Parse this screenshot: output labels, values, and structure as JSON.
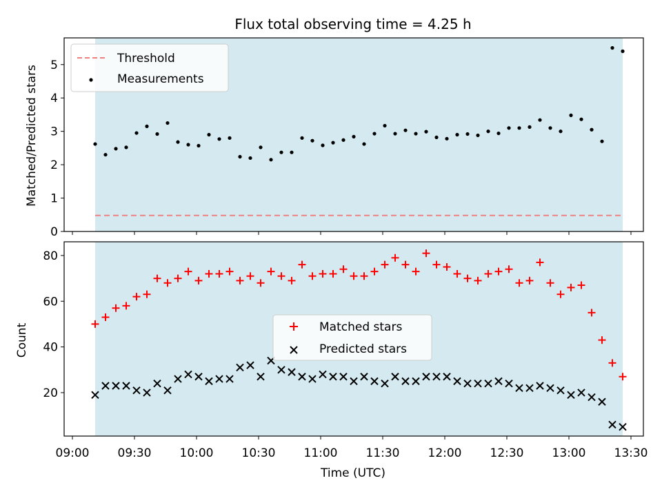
{
  "figure_title": "Flux total observing time = 4.25 h",
  "xlabel": "Time (UTC)",
  "x_ticks": [
    "09:00",
    "09:30",
    "10:00",
    "10:30",
    "11:00",
    "11:30",
    "12:00",
    "12:30",
    "13:00",
    "13:30"
  ],
  "colors": {
    "shade": "#d4eaf0",
    "threshold": "#f08080",
    "measurements": "#000000",
    "matched": "#ff0000",
    "predicted": "#000000"
  },
  "chart_data": [
    {
      "type": "scatter",
      "panel": "top",
      "ylabel": "Matched/Predicted stars",
      "ylim": [
        0,
        5.8
      ],
      "y_ticks": [
        0,
        1,
        2,
        3,
        4,
        5
      ],
      "xlim_minutes_after_0900": [
        -4,
        276
      ],
      "shaded_span": [
        "09:11",
        "13:26"
      ],
      "legend_position": "upper-left",
      "series": [
        {
          "name": "Threshold",
          "kind": "dashed-line",
          "x": [
            "09:11",
            "13:26"
          ],
          "y": [
            0.48,
            0.48
          ]
        },
        {
          "name": "Measurements",
          "kind": "points",
          "x": [
            "09:11",
            "09:16",
            "09:21",
            "09:26",
            "09:31",
            "09:36",
            "09:41",
            "09:46",
            "09:51",
            "09:56",
            "10:01",
            "10:06",
            "10:11",
            "10:16",
            "10:21",
            "10:26",
            "10:31",
            "10:36",
            "10:41",
            "10:46",
            "10:51",
            "10:56",
            "11:01",
            "11:06",
            "11:11",
            "11:16",
            "11:21",
            "11:26",
            "11:31",
            "11:36",
            "11:41",
            "11:46",
            "11:51",
            "11:56",
            "12:01",
            "12:06",
            "12:11",
            "12:16",
            "12:21",
            "12:26",
            "12:31",
            "12:36",
            "12:41",
            "12:46",
            "12:51",
            "12:56",
            "13:01",
            "13:06",
            "13:11",
            "13:16",
            "13:21",
            "13:26"
          ],
          "y": [
            2.62,
            2.3,
            2.48,
            2.52,
            2.95,
            3.15,
            2.92,
            3.25,
            2.68,
            2.6,
            2.57,
            2.9,
            2.77,
            2.8,
            2.24,
            2.2,
            2.52,
            2.15,
            2.37,
            2.37,
            2.8,
            2.72,
            2.58,
            2.66,
            2.74,
            2.84,
            2.62,
            2.93,
            3.17,
            2.93,
            3.03,
            2.93,
            2.99,
            2.82,
            2.78,
            2.9,
            2.92,
            2.88,
            3.0,
            2.94,
            3.1,
            3.1,
            3.13,
            3.34,
            3.1,
            3.0,
            3.48,
            3.36,
            3.05,
            2.7,
            5.5,
            5.4
          ]
        }
      ]
    },
    {
      "type": "scatter",
      "panel": "bottom",
      "ylabel": "Count",
      "ylim": [
        1,
        86
      ],
      "y_ticks": [
        20,
        40,
        60,
        80
      ],
      "xlim_minutes_after_0900": [
        -4,
        276
      ],
      "shaded_span": [
        "09:11",
        "13:26"
      ],
      "legend_position": "center",
      "series": [
        {
          "name": "Matched stars",
          "marker": "+",
          "x": [
            "09:11",
            "09:16",
            "09:21",
            "09:26",
            "09:31",
            "09:36",
            "09:41",
            "09:46",
            "09:51",
            "09:56",
            "10:01",
            "10:06",
            "10:11",
            "10:16",
            "10:21",
            "10:26",
            "10:31",
            "10:36",
            "10:41",
            "10:46",
            "10:51",
            "10:56",
            "11:01",
            "11:06",
            "11:11",
            "11:16",
            "11:21",
            "11:26",
            "11:31",
            "11:36",
            "11:41",
            "11:46",
            "11:51",
            "11:56",
            "12:01",
            "12:06",
            "12:11",
            "12:16",
            "12:21",
            "12:26",
            "12:31",
            "12:36",
            "12:41",
            "12:46",
            "12:51",
            "12:56",
            "13:01",
            "13:06",
            "13:11",
            "13:16",
            "13:21",
            "13:26"
          ],
          "y": [
            50,
            53,
            57,
            58,
            62,
            63,
            70,
            68,
            70,
            73,
            69,
            72,
            72,
            73,
            69,
            71,
            68,
            73,
            71,
            69,
            76,
            71,
            72,
            72,
            74,
            71,
            71,
            73,
            76,
            79,
            76,
            73,
            81,
            76,
            75,
            72,
            70,
            69,
            72,
            73,
            74,
            68,
            69,
            77,
            68,
            63,
            66,
            67,
            55,
            43,
            33,
            27
          ]
        },
        {
          "name": "Predicted stars",
          "marker": "x",
          "x": [
            "09:11",
            "09:16",
            "09:21",
            "09:26",
            "09:31",
            "09:36",
            "09:41",
            "09:46",
            "09:51",
            "09:56",
            "10:01",
            "10:06",
            "10:11",
            "10:16",
            "10:21",
            "10:26",
            "10:31",
            "10:36",
            "10:41",
            "10:46",
            "10:51",
            "10:56",
            "11:01",
            "11:06",
            "11:11",
            "11:16",
            "11:21",
            "11:26",
            "11:31",
            "11:36",
            "11:41",
            "11:46",
            "11:51",
            "11:56",
            "12:01",
            "12:06",
            "12:11",
            "12:16",
            "12:21",
            "12:26",
            "12:31",
            "12:36",
            "12:41",
            "12:46",
            "12:51",
            "12:56",
            "13:01",
            "13:06",
            "13:11",
            "13:16",
            "13:21",
            "13:26"
          ],
          "y": [
            19,
            23,
            23,
            23,
            21,
            20,
            24,
            21,
            26,
            28,
            27,
            25,
            26,
            26,
            31,
            32,
            27,
            34,
            30,
            29,
            27,
            26,
            28,
            27,
            27,
            25,
            27,
            25,
            24,
            27,
            25,
            25,
            27,
            27,
            27,
            25,
            24,
            24,
            24,
            25,
            24,
            22,
            22,
            23,
            22,
            21,
            19,
            20,
            18,
            16,
            6,
            5
          ]
        }
      ]
    }
  ]
}
